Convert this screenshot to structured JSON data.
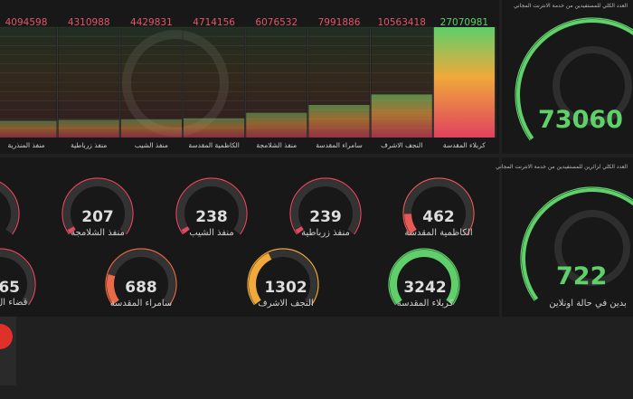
{
  "bar_panel": {
    "chart_data": {
      "type": "bar",
      "categories": [
        "كربلاء المقدسة",
        "النجف الاشرف",
        "سامراء المقدسة",
        "منفذ الشلامجة",
        "الكاظمية المقدسة",
        "منفذ الشيب",
        "منفذ زرباطية",
        "منفذ المنذرية"
      ],
      "values": [
        27070981,
        10563418,
        7991886,
        6076532,
        4714156,
        4429831,
        4310988,
        4094598
      ],
      "value_labels": [
        "27070981",
        "10563418",
        "7991886",
        "6076532",
        "4714156",
        "4429831",
        "4310988",
        "4094598"
      ],
      "ylim": [
        0,
        27070981
      ],
      "grid": true,
      "colors": {
        "high": "#5fcf6a",
        "mid": "#f0a93a",
        "low": "#e0415e"
      }
    }
  },
  "top_right_panel": {
    "title": "العدد الكلي للمستفيدين من خدمة الانترنت المجاني",
    "value": "73060",
    "gauge_fraction": 0.85,
    "color": "#5fd06a"
  },
  "gauges": [
    {
      "value": "207",
      "label": "منفذ الشلامجة",
      "fraction": 0.03,
      "color": "#e24860"
    },
    {
      "value": "238",
      "label": "منفذ الشيب",
      "fraction": 0.03,
      "color": "#e24860"
    },
    {
      "value": "239",
      "label": "منفذ زرباطية",
      "fraction": 0.03,
      "color": "#e24860"
    },
    {
      "value": "462",
      "label": "الكاظمية المقدسة",
      "fraction": 0.14,
      "color": "#e55a55"
    },
    {
      "value": "65",
      "label": "قضاء ال",
      "fraction": 0.02,
      "color": "#e24860"
    },
    {
      "value": "688",
      "label": "سامراء المقدسة",
      "fraction": 0.21,
      "color": "#ea6a48"
    },
    {
      "value": "1302",
      "label": "النجف الاشرف",
      "fraction": 0.4,
      "color": "#f0a93a"
    },
    {
      "value": "3242",
      "label": "كربلاء المقدسة",
      "fraction": 1.0,
      "color": "#5fcf6a"
    }
  ],
  "mid_right_panel": {
    "title": "العدد الكلي لزائرين للمستفيدين من خدمة الانترنت المجاني",
    "value": "722",
    "label": "بدين في حالة اونلاين",
    "gauge_fraction": 0.85,
    "color": "#5fd06a"
  }
}
